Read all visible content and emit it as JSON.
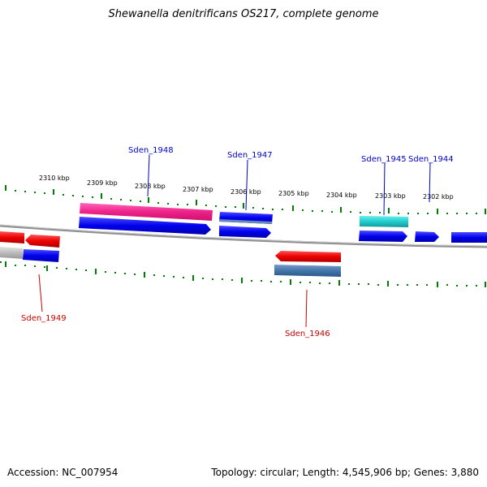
{
  "title": "Shewanella denitrificans OS217, complete genome",
  "footer": {
    "accession": "Accession: NC_007954",
    "summary": "Topology: circular; Length: 4,545,906 bp; Genes: 3,880"
  },
  "scale": {
    "tick_labels": [
      "2310 kbp",
      "2309 kbp",
      "2308 kbp",
      "2307 kbp",
      "2306 kbp",
      "2305 kbp",
      "2304 kbp",
      "2303 kbp",
      "2302 kbp"
    ]
  },
  "genes": {
    "labels_plus": [
      "Sden_1948",
      "Sden_1947",
      "Sden_1945",
      "Sden_1944"
    ],
    "labels_minus": [
      "Sden_1949",
      "Sden_1946"
    ]
  },
  "colors": {
    "plus_label": "#0000cc",
    "minus_label": "#cc0000",
    "tick": "#008000",
    "backbone": "#888888",
    "gene_blue": "#0000ee",
    "gene_red": "#ee0000",
    "gene_pink": "#ee2288",
    "gene_steel": "#4477aa",
    "gene_cyan": "#22cccc",
    "gene_gray": "#bbbbbb"
  }
}
